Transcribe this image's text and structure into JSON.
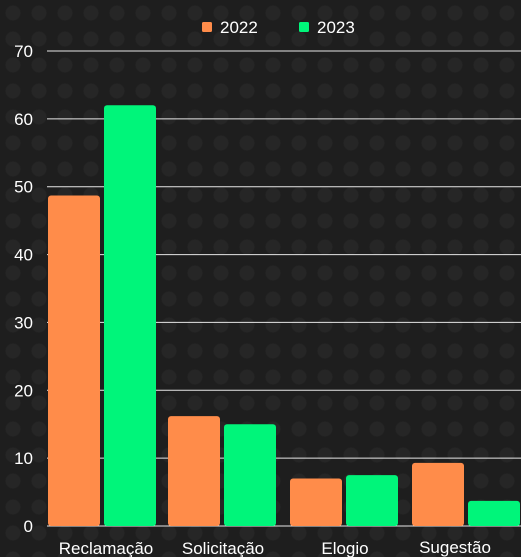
{
  "chart_data": {
    "type": "bar",
    "categories": [
      "Reclamação",
      "Solicitação",
      "Elogio",
      "Sugestão"
    ],
    "series": [
      {
        "name": "2022",
        "color": "#ff8c4a",
        "values": [
          48.7,
          16.2,
          7.0,
          9.3
        ]
      },
      {
        "name": "2023",
        "color": "#00f57a",
        "values": [
          62.0,
          15.0,
          7.5,
          3.7
        ]
      }
    ],
    "ylim": [
      0,
      70
    ],
    "yticks": [
      0,
      10,
      20,
      30,
      40,
      50,
      60,
      70
    ],
    "grid": true,
    "legend": "top-center",
    "title": "",
    "xlabel": "",
    "ylabel": ""
  }
}
